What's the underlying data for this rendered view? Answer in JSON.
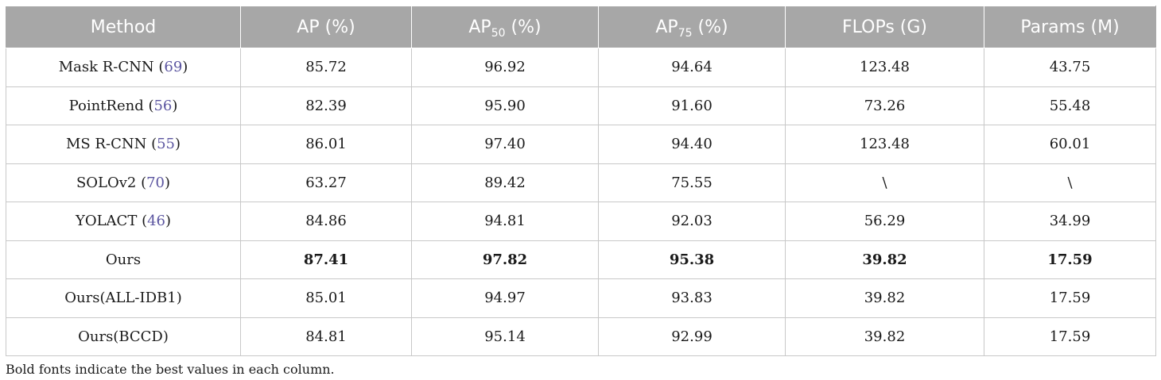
{
  "table": {
    "headers": [
      {
        "main": "Method",
        "sub": "",
        "rest": ""
      },
      {
        "main": "AP (%)",
        "sub": "",
        "rest": ""
      },
      {
        "main": "AP",
        "sub": "50",
        "rest": " (%)"
      },
      {
        "main": "AP",
        "sub": "75",
        "rest": " (%)"
      },
      {
        "main": "FLOPs (G)",
        "sub": "",
        "rest": ""
      },
      {
        "main": "Params (M)",
        "sub": "",
        "rest": ""
      }
    ],
    "rows": [
      {
        "method": "Mask R-CNN",
        "ref": "69",
        "ap": "85.72",
        "ap50": "96.92",
        "ap75": "94.64",
        "flops": "123.48",
        "params": "43.75",
        "bold": false
      },
      {
        "method": "PointRend",
        "ref": "56",
        "ap": "82.39",
        "ap50": "95.90",
        "ap75": "91.60",
        "flops": "73.26",
        "params": "55.48",
        "bold": false
      },
      {
        "method": "MS R-CNN",
        "ref": "55",
        "ap": "86.01",
        "ap50": "97.40",
        "ap75": "94.40",
        "flops": "123.48",
        "params": "60.01",
        "bold": false
      },
      {
        "method": "SOLOv2",
        "ref": "70",
        "ap": "63.27",
        "ap50": "89.42",
        "ap75": "75.55",
        "flops": "\\",
        "params": "\\",
        "bold": false
      },
      {
        "method": "YOLACT",
        "ref": "46",
        "ap": "84.86",
        "ap50": "94.81",
        "ap75": "92.03",
        "flops": "56.29",
        "params": "34.99",
        "bold": false
      },
      {
        "method": "Ours",
        "ref": "",
        "ap": "87.41",
        "ap50": "97.82",
        "ap75": "95.38",
        "flops": "39.82",
        "params": "17.59",
        "bold": true
      },
      {
        "method": "Ours(ALL-IDB1)",
        "ref": "",
        "ap": "85.01",
        "ap50": "94.97",
        "ap75": "93.83",
        "flops": "39.82",
        "params": "17.59",
        "bold": false
      },
      {
        "method": "Ours(BCCD)",
        "ref": "",
        "ap": "84.81",
        "ap50": "95.14",
        "ap75": "92.99",
        "flops": "39.82",
        "params": "17.59",
        "bold": false
      }
    ]
  },
  "footnote": "Bold fonts indicate the best values in each column.",
  "colors": {
    "header_bg": "#a7a7a7",
    "header_text": "#ffffff",
    "ref_link": "#5b55a0"
  }
}
